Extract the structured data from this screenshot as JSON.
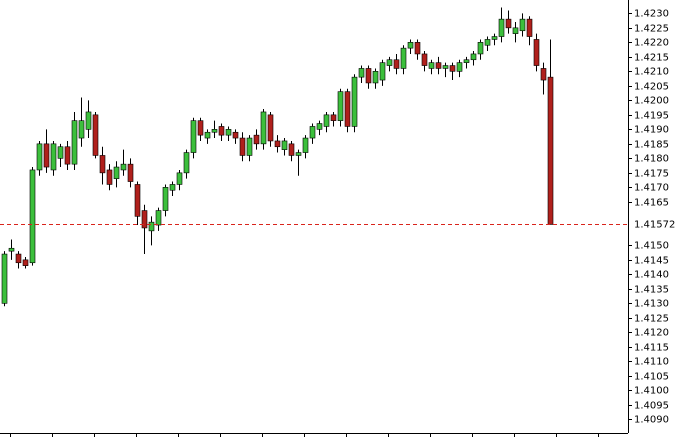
{
  "chart_data": {
    "type": "candlestick",
    "up_color": "#3cbf3c",
    "down_color": "#b0201c",
    "open": [
      1.413,
      1.4148,
      1.4147,
      1.4145,
      1.4144,
      1.4176,
      1.4185,
      1.4176,
      1.418,
      1.4184,
      1.4178,
      1.4187,
      1.419,
      1.4195,
      1.4181,
      1.4176,
      1.4173,
      1.4176,
      1.4178,
      1.4171,
      1.4162,
      1.4155,
      1.4157,
      1.4162,
      1.4169,
      1.4171,
      1.4175,
      1.4182,
      1.4193,
      1.4187,
      1.4189,
      1.4191,
      1.4188,
      1.4189,
      1.4187,
      1.4181,
      1.4188,
      1.4185,
      1.4195,
      1.4186,
      1.4183,
      1.4185,
      1.4181,
      1.4182,
      1.4187,
      1.419,
      1.4191,
      1.4195,
      1.4193,
      1.4203,
      1.4191,
      1.4208,
      1.4211,
      1.4206,
      1.4207,
      1.4212,
      1.4214,
      1.4211,
      1.4218,
      1.422,
      1.4216,
      1.4211,
      1.4213,
      1.4211,
      1.4212,
      1.421,
      1.4213,
      1.4214,
      1.4216,
      1.4219,
      1.4221,
      1.4222,
      1.4228,
      1.4223,
      1.4224,
      1.4228,
      1.4221,
      1.4211,
      1.4208
    ],
    "high": [
      1.4148,
      1.4152,
      1.4148,
      1.4146,
      1.4177,
      1.4186,
      1.419,
      1.4186,
      1.4185,
      1.4186,
      1.4196,
      1.4201,
      1.42,
      1.4196,
      1.4184,
      1.4178,
      1.4179,
      1.4183,
      1.418,
      1.4172,
      1.4164,
      1.416,
      1.4163,
      1.4171,
      1.4172,
      1.4176,
      1.4183,
      1.4194,
      1.4194,
      1.419,
      1.4193,
      1.4192,
      1.4191,
      1.419,
      1.4189,
      1.4188,
      1.419,
      1.4197,
      1.4196,
      1.4188,
      1.4187,
      1.4186,
      1.4183,
      1.4188,
      1.4192,
      1.4193,
      1.4196,
      1.4196,
      1.4204,
      1.4204,
      1.4209,
      1.4212,
      1.4212,
      1.4211,
      1.4214,
      1.4215,
      1.4216,
      1.4219,
      1.4221,
      1.4221,
      1.4217,
      1.4214,
      1.4215,
      1.4213,
      1.4213,
      1.4214,
      1.4215,
      1.4217,
      1.4221,
      1.4222,
      1.4223,
      1.4232,
      1.4231,
      1.4227,
      1.423,
      1.4229,
      1.4223,
      1.4213,
      1.4221
    ],
    "low": [
      1.4129,
      1.4145,
      1.4142,
      1.4142,
      1.4143,
      1.4174,
      1.4175,
      1.4174,
      1.4177,
      1.4176,
      1.4176,
      1.4184,
      1.4187,
      1.418,
      1.4171,
      1.4169,
      1.417,
      1.4174,
      1.417,
      1.4157,
      1.4147,
      1.415,
      1.4155,
      1.416,
      1.4167,
      1.4169,
      1.4173,
      1.418,
      1.4186,
      1.4185,
      1.4187,
      1.4186,
      1.4186,
      1.4185,
      1.4179,
      1.4179,
      1.4183,
      1.4183,
      1.4184,
      1.4182,
      1.4181,
      1.4179,
      1.4174,
      1.418,
      1.4185,
      1.4188,
      1.4189,
      1.4191,
      1.4191,
      1.4189,
      1.4189,
      1.4206,
      1.4204,
      1.4204,
      1.4205,
      1.421,
      1.4209,
      1.4209,
      1.4216,
      1.4214,
      1.421,
      1.4209,
      1.4209,
      1.4208,
      1.4207,
      1.4208,
      1.4211,
      1.4212,
      1.4214,
      1.4217,
      1.4219,
      1.422,
      1.4223,
      1.422,
      1.4222,
      1.4219,
      1.421,
      1.4202,
      1.41572
    ],
    "close": [
      1.4147,
      1.4149,
      1.4144,
      1.4143,
      1.4176,
      1.4185,
      1.4177,
      1.4185,
      1.4184,
      1.4178,
      1.4193,
      1.4193,
      1.4196,
      1.4181,
      1.4175,
      1.4171,
      1.4177,
      1.4178,
      1.4172,
      1.416,
      1.4156,
      1.4158,
      1.4162,
      1.417,
      1.4171,
      1.4175,
      1.4182,
      1.4193,
      1.4188,
      1.4189,
      1.419,
      1.4188,
      1.419,
      1.4187,
      1.4181,
      1.4187,
      1.4185,
      1.4196,
      1.4186,
      1.4184,
      1.4186,
      1.4181,
      1.4182,
      1.4187,
      1.4191,
      1.4192,
      1.4195,
      1.4193,
      1.4203,
      1.4191,
      1.4208,
      1.4211,
      1.4206,
      1.421,
      1.4213,
      1.4214,
      1.4211,
      1.4218,
      1.422,
      1.4216,
      1.4212,
      1.4213,
      1.4211,
      1.4212,
      1.421,
      1.4213,
      1.4214,
      1.4216,
      1.422,
      1.4221,
      1.4222,
      1.4228,
      1.4225,
      1.4225,
      1.4228,
      1.4222,
      1.4212,
      1.4207,
      1.41572
    ],
    "current_price": 1.41572,
    "current_price_color": "#d9241c",
    "ylim": [
      1.40853,
      1.42346
    ],
    "yticks": [
      {
        "value": 1.409,
        "label": "1.4090"
      },
      1.4095,
      {
        "value": 1.41,
        "label": "1.4100"
      },
      1.4105,
      {
        "value": 1.411,
        "label": "1.4110"
      },
      1.4115,
      {
        "value": 1.412,
        "label": "1.4120"
      },
      1.4125,
      {
        "value": 1.413,
        "label": "1.4130"
      },
      1.4135,
      {
        "value": 1.414,
        "label": "1.4140"
      },
      1.4145,
      {
        "value": 1.415,
        "label": "1.4150"
      },
      1.4165,
      {
        "value": 1.417,
        "label": "1.4170"
      },
      1.4175,
      {
        "value": 1.418,
        "label": "1.4180"
      },
      1.4185,
      {
        "value": 1.419,
        "label": "1.4190"
      },
      1.4195,
      {
        "value": 1.42,
        "label": "1.4200"
      },
      1.4205,
      {
        "value": 1.421,
        "label": "1.4210"
      },
      1.4215,
      {
        "value": 1.422,
        "label": "1.4220"
      },
      1.4225,
      {
        "value": 1.423,
        "label": "1.4230"
      }
    ]
  }
}
